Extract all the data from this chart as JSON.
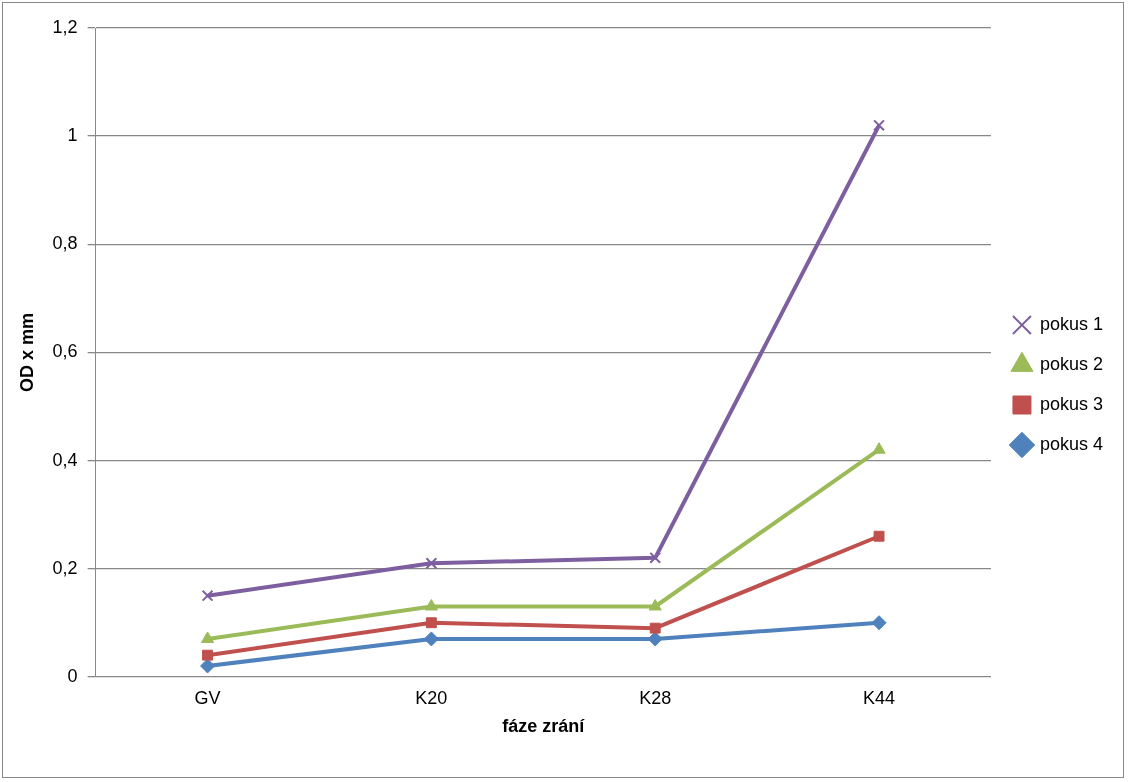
{
  "chart_data": {
    "type": "line",
    "xlabel": "fáze zrání",
    "ylabel": "OD x mm",
    "categories": [
      "GV",
      "K20",
      "K28",
      "K44"
    ],
    "ylim": [
      0,
      1.2
    ],
    "yticks": [
      0,
      {
        "value": 0.2,
        "label": "0,2"
      },
      {
        "value": 0.4,
        "label": "0,4"
      },
      {
        "value": 0.6,
        "label": "0,6"
      },
      {
        "value": 0.8,
        "label": "0,8"
      },
      1,
      {
        "value": 1.2,
        "label": "1,2"
      }
    ],
    "grid": "y",
    "legend": "right",
    "line_style": "solid",
    "series": [
      {
        "name": "pokus 1",
        "color": "#7d5fa0",
        "marker": "cross",
        "values": [
          0.15,
          0.21,
          0.22,
          1.02
        ]
      },
      {
        "name": "pokus 2",
        "color": "#9bbb59",
        "marker": "triangle",
        "values": [
          0.07,
          0.13,
          0.13,
          0.42
        ]
      },
      {
        "name": "pokus 3",
        "color": "#c0504d",
        "marker": "square",
        "values": [
          0.04,
          0.1,
          0.09,
          0.26
        ]
      },
      {
        "name": "pokus 4",
        "color": "#4f81bd",
        "marker": "diamond",
        "values": [
          0.02,
          0.07,
          0.07,
          0.1
        ]
      }
    ]
  }
}
